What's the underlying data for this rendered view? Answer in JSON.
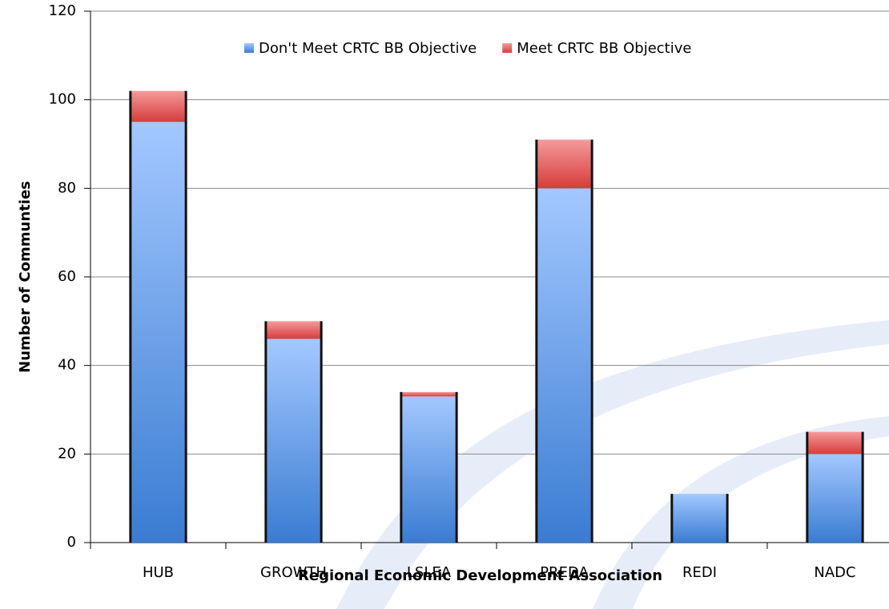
{
  "chart_data": {
    "type": "stacked_bar",
    "xlabel": "Regional Economic Development Association",
    "ylabel": "Number of Communties",
    "categories": [
      "HUB",
      "GROWTH",
      "LSLEA",
      "PREDA",
      "REDI",
      "NADC"
    ],
    "series": [
      {
        "name": "Don't Meet CRTC BB Objective",
        "color": "#4f8ee0",
        "values": [
          95,
          46,
          33,
          80,
          11,
          20
        ]
      },
      {
        "name": "Meet CRTC BB Objective",
        "color": "#e05050",
        "values": [
          7,
          4,
          1,
          11,
          0,
          5
        ]
      }
    ],
    "ylim": [
      0,
      120
    ],
    "yticks": [
      0,
      20,
      40,
      60,
      80,
      100,
      120
    ],
    "grid": true,
    "legend": "top"
  }
}
